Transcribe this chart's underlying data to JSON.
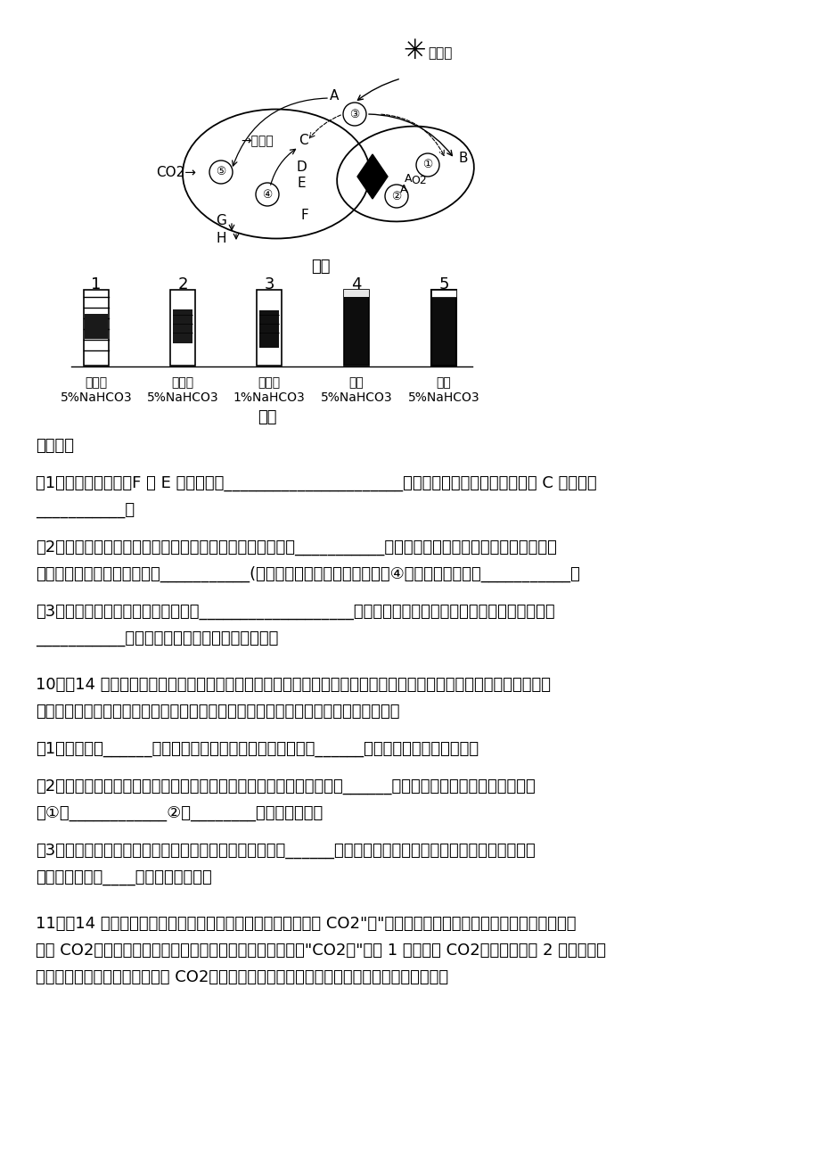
{
  "page_bg": "#ffffff",
  "text_color": "#000000",
  "diagram_title_jia": "图甲",
  "diagram_title_yi": "图乙",
  "questions_header": "请回答：",
  "q1": "（1）从能量变化看，F 到 E 的反应称为______________________反应。在光反应时，图甲中物质 C 的作用是",
  "q1b": "___________。",
  "q2": "（2）提取绿叶中光合色素时，除绿叶等，还需向研钵中加入___________，作为溶解光合色素的溶剂。光合色素吸",
  "q2b": "收的光能转变为化学能储存在___________(填图甲中字母）中，这些物质在④过程中起的作用是___________。",
  "q3": "（3）利用图乙的实验处理可用于研究___________________等环境随对光合速率的影响。该实验可通过观察",
  "q3b": "___________即可比较各组实验光合速率的大小。",
  "q10_header": "10．（14 分）为更加详细了解生态系统功能，某科研小组对小麦农田的不同阶段甲、乙进行了碳元素相关测定：甲阶",
  "q10_b": "段，碳元素吸收量等于释放量；乙阶段，碳元素吸收量小于释放量。请回答下列问题：",
  "q10_1": "（1）碳元素以______（二氧化碳、有机物）的形式沿食物网______（单向、循环往复）流动。",
  "q10_2": "（2）小麦的主要害虫之一蚜虫以叶和茎秆汁液为食，二者的种间关系为______。若对蚜虫进什生物防治你的建议",
  "q10_2b": "是①：____________②：________（答出两点）。",
  "q10_3": "（3）乙阶段最可能的原因是小麦等生产者的光合作用小于______（消费者、分解者、生物）的呼吸作用，生态系",
  "q10_3b": "统抵抗力稳定性____（增加，降低）。",
  "q11_header": "11．（14 分）玉米叶肉细胞中有一种酶，可通过一系列反应将 CO2\"泵\"入维管束鞘细胞，使维管束鞘细胞积累较高浓",
  "q11_b": "度的 CO2，保证卡尔文循环顺利进行，这种酶被形象地称为\"CO2泵\"。图 1 表示玉米 CO2同化途径，图 2 表示进行自",
  "q11_c": "然种植的大棚和人工一次性施加 CO2后的大棚内玉米光合速率变化曲线。回答下列相关问题：",
  "tube_labels_top": [
    "1",
    "2",
    "3",
    "4",
    "5"
  ],
  "tube_labels_bottom1": [
    "半透光",
    "全透光",
    "全透光",
    "红光",
    "绿光"
  ],
  "tube_labels_bottom2": [
    "5%NaHCO3",
    "5%NaHCO3",
    "1%NaHCO3",
    "5%NaHCO3",
    "5%NaHCO3"
  ]
}
